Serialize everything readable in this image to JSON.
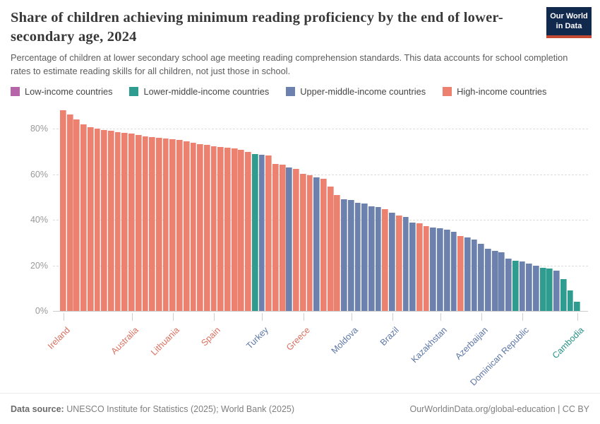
{
  "header": {
    "title": "Share of children achieving minimum reading proficiency by the end of lower-secondary age, 2024",
    "subtitle": "Percentage of children at lower secondary school age meeting reading comprehension standards. This data accounts for school completion rates to estimate reading skills for all children, not just those in school.",
    "logo": {
      "line1": "Our World",
      "line2": "in Data",
      "bg": "#12294E",
      "accent": "#C44A34"
    }
  },
  "legend": {
    "items": [
      {
        "key": "low",
        "label": "Low-income countries"
      },
      {
        "key": "lower_middle",
        "label": "Lower-middle-income countries"
      },
      {
        "key": "upper_middle",
        "label": "Upper-middle-income countries"
      },
      {
        "key": "high",
        "label": "High-income countries"
      }
    ]
  },
  "chart_data": {
    "type": "bar",
    "title": "Share of children achieving minimum reading proficiency by the end of lower-secondary age, 2024",
    "ylabel": "",
    "xlabel": "",
    "ylim": [
      0,
      88.2
    ],
    "yticks": [
      0,
      20,
      40,
      60,
      80
    ],
    "ytick_suffix": "%",
    "grid": "dashed horizontal",
    "legend_position": "top",
    "group_colors": {
      "low": "#B665A9",
      "lower_middle": "#2E9C8F",
      "upper_middle": "#6C81AD",
      "high": "#ED8170"
    },
    "label_colors": {
      "low": "#A85BA0",
      "lower_middle": "#2A9287",
      "upper_middle": "#5C76A5",
      "high": "#D8705F"
    },
    "bars": [
      {
        "v": 88.2,
        "g": "high",
        "label": "Ireland"
      },
      {
        "v": 86.2,
        "g": "high"
      },
      {
        "v": 84.0,
        "g": "high"
      },
      {
        "v": 82.0,
        "g": "high"
      },
      {
        "v": 80.6,
        "g": "high"
      },
      {
        "v": 80.0,
        "g": "high"
      },
      {
        "v": 79.4,
        "g": "high"
      },
      {
        "v": 79.0,
        "g": "high"
      },
      {
        "v": 78.5,
        "g": "high"
      },
      {
        "v": 78.2,
        "g": "high"
      },
      {
        "v": 77.8,
        "g": "high",
        "label": "Australia"
      },
      {
        "v": 77.1,
        "g": "high"
      },
      {
        "v": 76.7,
        "g": "high"
      },
      {
        "v": 76.4,
        "g": "high"
      },
      {
        "v": 76.0,
        "g": "high"
      },
      {
        "v": 75.7,
        "g": "high"
      },
      {
        "v": 75.4,
        "g": "high",
        "label": "Lithuania"
      },
      {
        "v": 75.0,
        "g": "high"
      },
      {
        "v": 74.4,
        "g": "high"
      },
      {
        "v": 73.8,
        "g": "high"
      },
      {
        "v": 73.3,
        "g": "high"
      },
      {
        "v": 72.8,
        "g": "high"
      },
      {
        "v": 72.4,
        "g": "high",
        "label": "Spain"
      },
      {
        "v": 72.0,
        "g": "high"
      },
      {
        "v": 71.6,
        "g": "high"
      },
      {
        "v": 71.2,
        "g": "high"
      },
      {
        "v": 70.6,
        "g": "high"
      },
      {
        "v": 69.8,
        "g": "high"
      },
      {
        "v": 68.8,
        "g": "lower_middle"
      },
      {
        "v": 68.6,
        "g": "upper_middle",
        "label": "Turkey"
      },
      {
        "v": 68.2,
        "g": "high"
      },
      {
        "v": 64.6,
        "g": "high"
      },
      {
        "v": 64.3,
        "g": "high"
      },
      {
        "v": 63.0,
        "g": "upper_middle"
      },
      {
        "v": 62.4,
        "g": "high"
      },
      {
        "v": 60.2,
        "g": "high",
        "label": "Greece"
      },
      {
        "v": 59.5,
        "g": "high"
      },
      {
        "v": 58.5,
        "g": "upper_middle"
      },
      {
        "v": 57.9,
        "g": "high"
      },
      {
        "v": 54.5,
        "g": "high"
      },
      {
        "v": 51.0,
        "g": "high"
      },
      {
        "v": 49.0,
        "g": "upper_middle"
      },
      {
        "v": 48.8,
        "g": "upper_middle",
        "label": "Moldova"
      },
      {
        "v": 47.4,
        "g": "upper_middle"
      },
      {
        "v": 47.0,
        "g": "upper_middle"
      },
      {
        "v": 46.0,
        "g": "upper_middle"
      },
      {
        "v": 45.5,
        "g": "upper_middle"
      },
      {
        "v": 44.7,
        "g": "high"
      },
      {
        "v": 43.1,
        "g": "upper_middle",
        "label": "Brazil"
      },
      {
        "v": 41.9,
        "g": "high"
      },
      {
        "v": 41.1,
        "g": "upper_middle"
      },
      {
        "v": 38.8,
        "g": "upper_middle"
      },
      {
        "v": 38.4,
        "g": "high"
      },
      {
        "v": 37.2,
        "g": "high"
      },
      {
        "v": 36.6,
        "g": "upper_middle"
      },
      {
        "v": 36.2,
        "g": "upper_middle",
        "label": "Kazakhstan"
      },
      {
        "v": 35.7,
        "g": "upper_middle"
      },
      {
        "v": 34.8,
        "g": "upper_middle"
      },
      {
        "v": 32.9,
        "g": "high"
      },
      {
        "v": 32.2,
        "g": "upper_middle"
      },
      {
        "v": 31.2,
        "g": "upper_middle"
      },
      {
        "v": 29.5,
        "g": "upper_middle",
        "label": "Azerbaijan"
      },
      {
        "v": 27.4,
        "g": "upper_middle"
      },
      {
        "v": 26.3,
        "g": "upper_middle"
      },
      {
        "v": 25.6,
        "g": "upper_middle"
      },
      {
        "v": 22.9,
        "g": "upper_middle"
      },
      {
        "v": 21.9,
        "g": "lower_middle"
      },
      {
        "v": 21.7,
        "g": "upper_middle",
        "label": "Dominican Republic"
      },
      {
        "v": 20.8,
        "g": "upper_middle"
      },
      {
        "v": 19.8,
        "g": "upper_middle"
      },
      {
        "v": 19.0,
        "g": "lower_middle"
      },
      {
        "v": 18.6,
        "g": "lower_middle"
      },
      {
        "v": 17.6,
        "g": "upper_middle"
      },
      {
        "v": 13.9,
        "g": "lower_middle"
      },
      {
        "v": 9.0,
        "g": "lower_middle"
      },
      {
        "v": 4.1,
        "g": "lower_middle",
        "label": "Cambodia"
      }
    ]
  },
  "footer": {
    "source_label": "Data source:",
    "source_text": " UNESCO Institute for Statistics (2025); World Bank (2025)",
    "right_text": "OurWorldinData.org/global-education | CC BY"
  }
}
